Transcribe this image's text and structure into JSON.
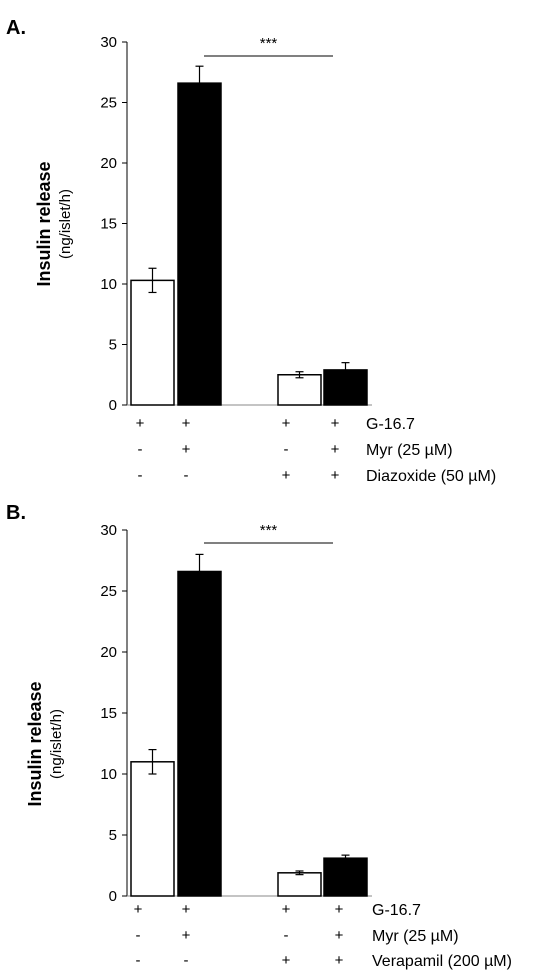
{
  "chart_data": [
    {
      "type": "bar",
      "panel_label": "A.",
      "ylabel": "Insulin release",
      "ylabel_unit": "(ng/islet/h)",
      "ylim": [
        0,
        30
      ],
      "yticks": [
        "0",
        "5",
        "10",
        "15",
        "20",
        "25",
        "30"
      ],
      "grid": false,
      "bars": [
        {
          "value": 10.3,
          "error": 1.0,
          "fill": "#ffffff"
        },
        {
          "value": 26.6,
          "error": 1.4,
          "fill": "#000000"
        },
        {
          "value": 2.5,
          "error": 0.25,
          "fill": "#ffffff"
        },
        {
          "value": 2.9,
          "error": 0.6,
          "fill": "#000000"
        }
      ],
      "significance": {
        "label": "***",
        "between": [
          1,
          3
        ]
      },
      "conditions": [
        {
          "label": "G-16.7",
          "marks": [
            "+",
            "+",
            "+",
            "+"
          ]
        },
        {
          "label": "Myr (25 µM)",
          "marks": [
            "-",
            "+",
            "-",
            "+"
          ]
        },
        {
          "label": "Diazoxide (50 µM)",
          "marks": [
            "-",
            "-",
            "+",
            "+"
          ]
        }
      ]
    },
    {
      "type": "bar",
      "panel_label": "B.",
      "ylabel": "Insulin release",
      "ylabel_unit": "(ng/islet/h)",
      "ylim": [
        0,
        30
      ],
      "yticks": [
        "0",
        "5",
        "10",
        "15",
        "20",
        "25",
        "30"
      ],
      "grid": false,
      "bars": [
        {
          "value": 11.0,
          "error": 1.0,
          "fill": "#ffffff"
        },
        {
          "value": 26.6,
          "error": 1.4,
          "fill": "#000000"
        },
        {
          "value": 1.9,
          "error": 0.15,
          "fill": "#ffffff"
        },
        {
          "value": 3.1,
          "error": 0.25,
          "fill": "#000000"
        }
      ],
      "significance": {
        "label": "***",
        "between": [
          1,
          3
        ]
      },
      "conditions": [
        {
          "label": "G-16.7",
          "marks": [
            "+",
            "+",
            "+",
            "+"
          ]
        },
        {
          "label": "Myr (25 µM)",
          "marks": [
            "-",
            "+",
            "-",
            "+"
          ]
        },
        {
          "label": "Verapamil (200 µM)",
          "marks": [
            "-",
            "-",
            "+",
            "+"
          ]
        }
      ]
    }
  ]
}
